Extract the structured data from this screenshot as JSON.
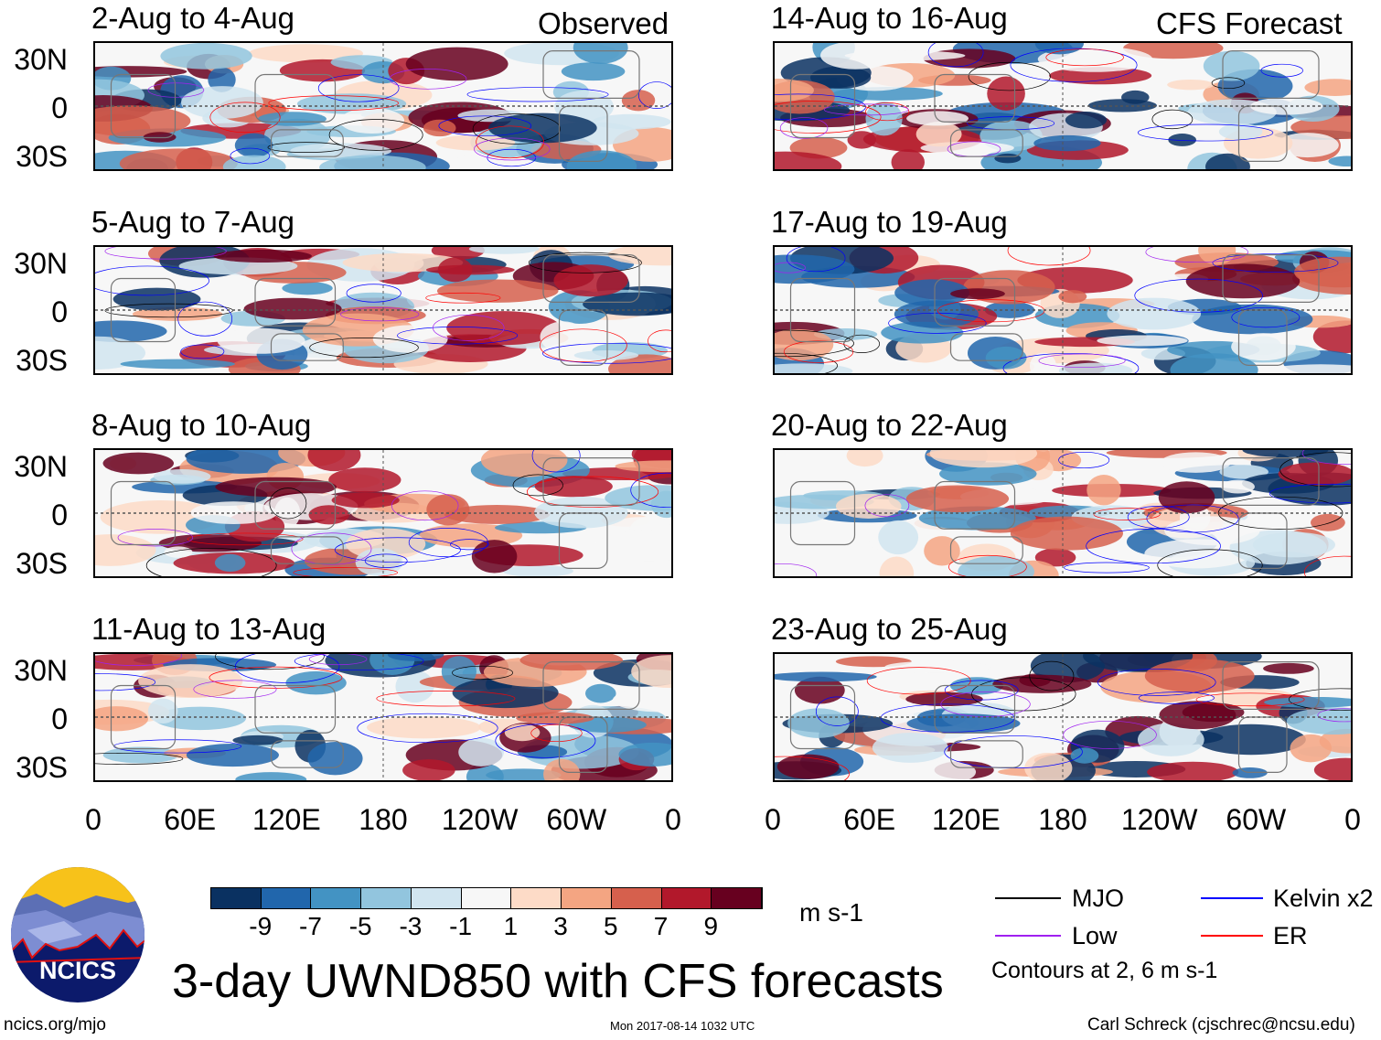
{
  "header": {
    "observed": "Observed",
    "forecast": "CFS Forecast"
  },
  "panels": [
    {
      "title": "2-Aug to 4-Aug",
      "side": "observed",
      "seed": 3
    },
    {
      "title": "5-Aug to 7-Aug",
      "side": "observed",
      "seed": 7
    },
    {
      "title": "8-Aug to 10-Aug",
      "side": "observed",
      "seed": 11
    },
    {
      "title": "11-Aug to 13-Aug",
      "side": "observed",
      "seed": 19
    },
    {
      "title": "14-Aug to 16-Aug",
      "side": "forecast",
      "seed": 23
    },
    {
      "title": "17-Aug to 19-Aug",
      "side": "forecast",
      "seed": 29
    },
    {
      "title": "20-Aug to 22-Aug",
      "side": "forecast",
      "seed": 31
    },
    {
      "title": "23-Aug to 25-Aug",
      "side": "forecast",
      "seed": 37
    }
  ],
  "axes": {
    "y_ticks": [
      "30N",
      "0",
      "30S"
    ],
    "x_ticks": [
      "0",
      "60E",
      "120E",
      "180",
      "120W",
      "60W",
      "0"
    ]
  },
  "colorbar": {
    "colors": [
      "#0a3161",
      "#2166ac",
      "#4393c3",
      "#92c5de",
      "#d1e5f0",
      "#f7f7f7",
      "#fddbc7",
      "#f4a582",
      "#d6604d",
      "#b2182b",
      "#67001f"
    ],
    "labels": [
      "-9",
      "-7",
      "-5",
      "-3",
      "-1",
      "1",
      "3",
      "5",
      "7",
      "9"
    ],
    "units": "m s-1"
  },
  "legend": {
    "items": [
      {
        "label": "MJO",
        "color": "#000000"
      },
      {
        "label": "Kelvin x2",
        "color": "#0000ff"
      },
      {
        "label": "Low",
        "color": "#a020f0"
      },
      {
        "label": "ER",
        "color": "#ff0000"
      }
    ],
    "contours_note": "Contours at 2, 6 m s-1"
  },
  "footer": {
    "title": "3-day UWND850 with CFS forecasts",
    "url": "ncics.org/mjo",
    "timestamp": "Mon 2017-08-14 1032 UTC",
    "author": "Carl Schreck (cjschrec@ncsu.edu)",
    "logo_text": "NCICS"
  }
}
